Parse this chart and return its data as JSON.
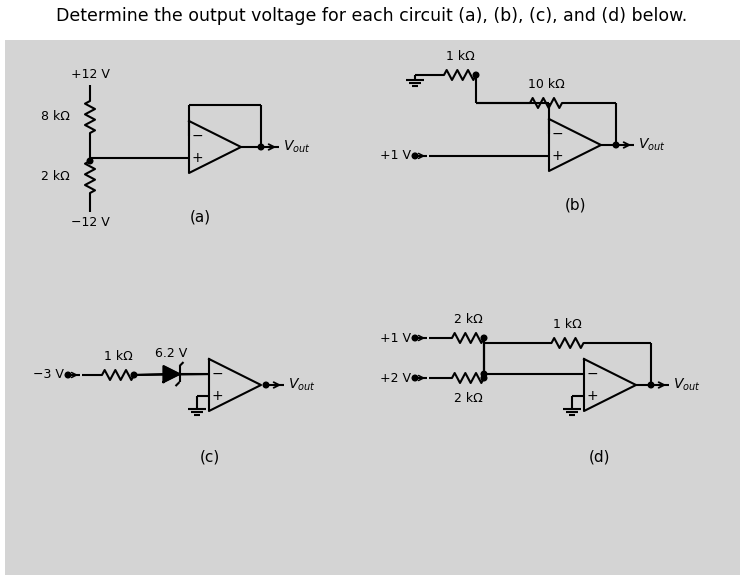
{
  "title": "Determine the output voltage for each circuit (a), (b), (c), and (d) below.",
  "title_fontsize": 12.5,
  "bg_color": "#d4d4d4",
  "fig_bg": "#ffffff",
  "line_color": "#000000",
  "text_color": "#000000",
  "circuit_bg": "#d4d4d4",
  "circuits": {
    "a": {
      "label": "(a)",
      "v_top": "+12 V",
      "v_bot": "−12 V",
      "r_top": "8 kΩ",
      "r_bot": "2 kΩ"
    },
    "b": {
      "label": "(b)",
      "r1": "1 kΩ",
      "r2": "10 kΩ",
      "v_in": "+1 V"
    },
    "c": {
      "label": "(c)",
      "r1": "1 kΩ",
      "zener": "6.2 V",
      "v_in": "−3 V"
    },
    "d": {
      "label": "(d)",
      "r1": "2 kΩ",
      "r2": "2 kΩ",
      "r3": "1 kΩ",
      "v1": "+1 V",
      "v2": "+2 V"
    }
  }
}
